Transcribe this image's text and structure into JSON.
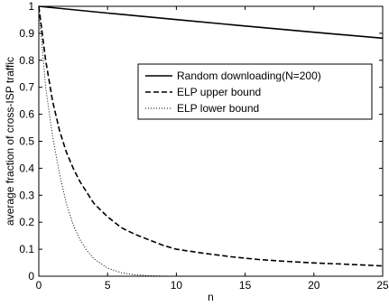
{
  "chart_data": {
    "type": "line",
    "title": "",
    "xlabel": "n",
    "ylabel": "average fraction of cross-ISP traffic",
    "xlim": [
      0,
      25
    ],
    "ylim": [
      0,
      1
    ],
    "x_ticks": [
      0,
      5,
      10,
      15,
      20,
      25
    ],
    "y_ticks": [
      0,
      0.1,
      0.2,
      0.3,
      0.4,
      0.5,
      0.6,
      0.7,
      0.8,
      0.9,
      1
    ],
    "x_tick_labels": [
      "0",
      "5",
      "10",
      "15",
      "20",
      "25"
    ],
    "y_tick_labels": [
      "0",
      "0.1",
      "0.2",
      "0.3",
      "0.4",
      "0.5",
      "0.6",
      "0.7",
      "0.8",
      "0.9",
      "1"
    ],
    "grid": false,
    "legend_position": "upper-right",
    "series": [
      {
        "name": "Random downloading(N=200)",
        "style": "solid",
        "color": "#000000",
        "x": [
          0,
          5,
          10,
          15,
          20,
          25
        ],
        "y": [
          1.0,
          0.975,
          0.951,
          0.927,
          0.904,
          0.882
        ]
      },
      {
        "name": "ELP upper bound",
        "style": "dashed",
        "color": "#000000",
        "x": [
          0,
          0.5,
          1,
          1.5,
          2,
          2.5,
          3,
          3.5,
          4,
          5,
          6,
          7,
          8,
          9,
          10,
          12,
          14,
          16,
          18,
          20,
          22,
          25
        ],
        "y": [
          1.0,
          0.8,
          0.65,
          0.54,
          0.46,
          0.4,
          0.35,
          0.31,
          0.27,
          0.22,
          0.18,
          0.155,
          0.135,
          0.115,
          0.1,
          0.085,
          0.072,
          0.062,
          0.055,
          0.049,
          0.045,
          0.038
        ]
      },
      {
        "name": "ELP lower bound",
        "style": "dotted",
        "color": "#000000",
        "x": [
          0,
          0.5,
          1,
          1.5,
          2,
          2.5,
          3,
          3.5,
          4,
          5,
          6,
          7,
          8,
          9,
          10,
          25
        ],
        "y": [
          1.0,
          0.7,
          0.52,
          0.38,
          0.27,
          0.19,
          0.135,
          0.095,
          0.065,
          0.03,
          0.013,
          0.005,
          0.002,
          0.0005,
          0,
          0
        ]
      }
    ]
  }
}
